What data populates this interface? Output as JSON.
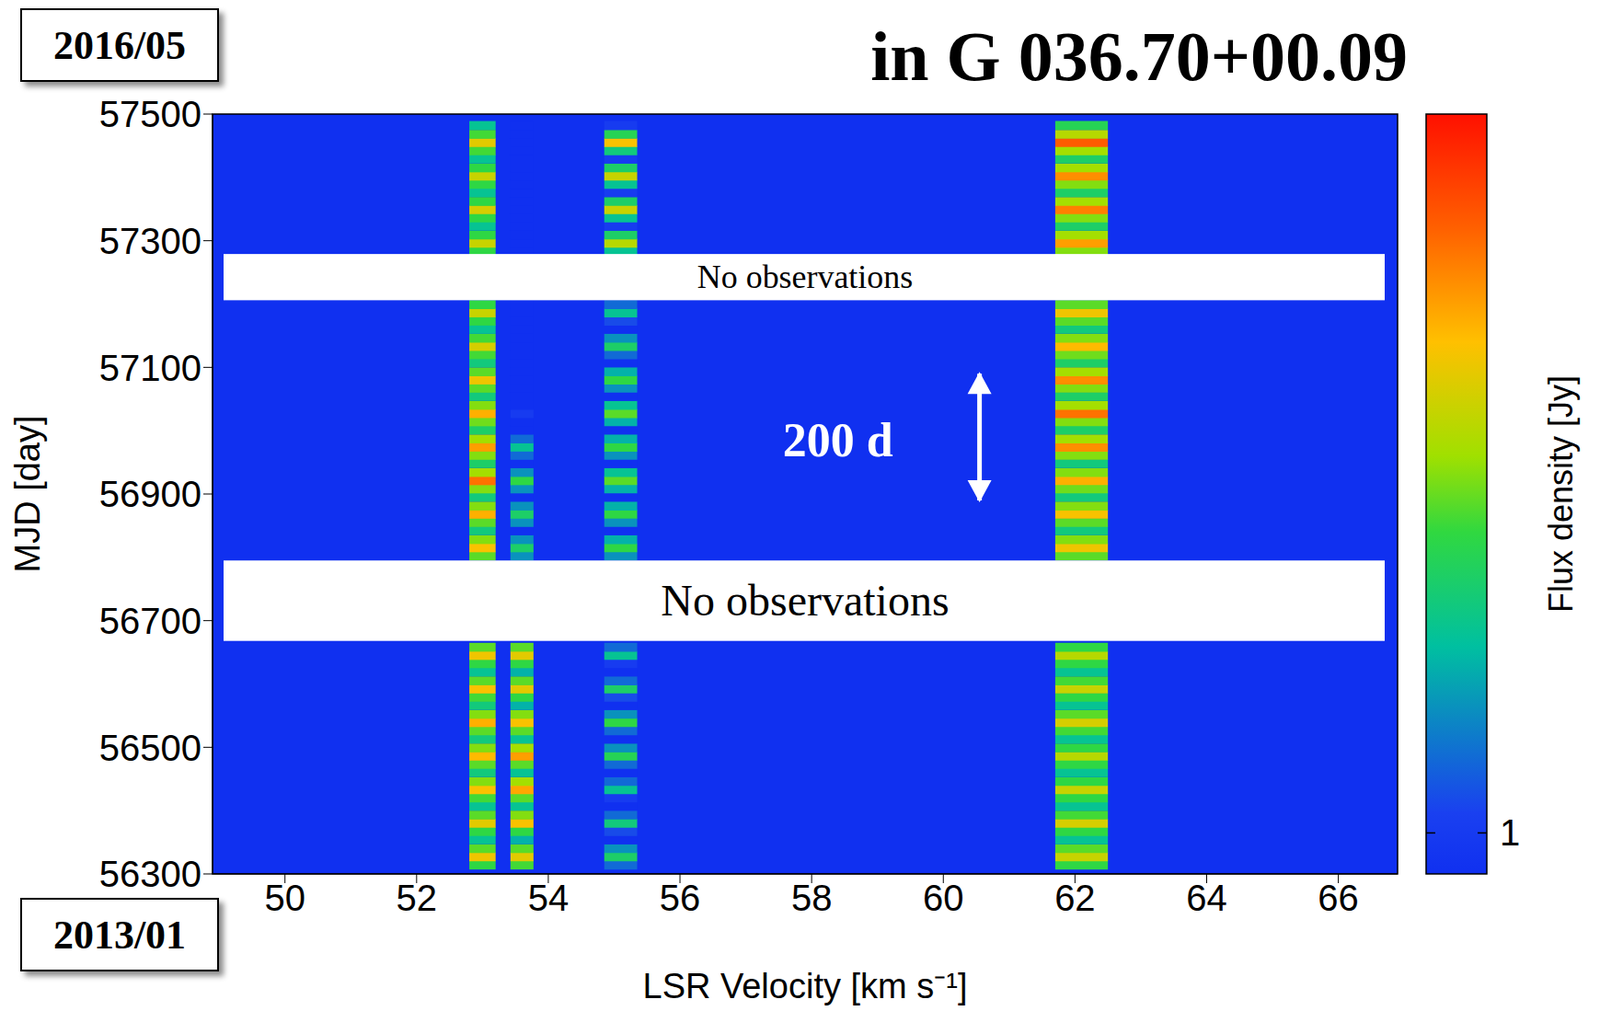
{
  "chart_data": {
    "type": "heatmap",
    "title": "in G 036.70+00.09",
    "xlabel": "LSR Velocity [km s⁻¹]",
    "ylabel": "MJD [day]",
    "xlim": [
      48.9,
      66.9
    ],
    "xticks": [
      50,
      52,
      54,
      56,
      58,
      60,
      62,
      64,
      66
    ],
    "ylim": [
      56300,
      57500
    ],
    "yticks": [
      56300,
      56500,
      56700,
      56900,
      57100,
      57300,
      57500
    ],
    "velocities": [
      53.0,
      53.6,
      55.1,
      62.1
    ],
    "velocity_widths": [
      0.4,
      0.35,
      0.5,
      0.8
    ],
    "mjd": [
      56314,
      56327,
      56340,
      56354,
      56367,
      56380,
      56393,
      56407,
      56420,
      56433,
      56446,
      56460,
      56473,
      56486,
      56499,
      56513,
      56526,
      56539,
      56552,
      56566,
      56579,
      56592,
      56605,
      56619,
      56632,
      56645,
      56658,
      56802,
      56815,
      56828,
      56842,
      56855,
      56868,
      56881,
      56895,
      56908,
      56921,
      56934,
      56948,
      56961,
      56974,
      56987,
      57001,
      57014,
      57027,
      57040,
      57054,
      57067,
      57080,
      57093,
      57107,
      57120,
      57133,
      57146,
      57160,
      57173,
      57186,
      57199,
      57283,
      57296,
      57309,
      57323,
      57336,
      57349,
      57362,
      57376,
      57389,
      57402,
      57415,
      57429,
      57442,
      57455,
      57468,
      57482
    ],
    "flux": [
      [
        5,
        5.5,
        1.5,
        5
      ],
      [
        13,
        12,
        4,
        10
      ],
      [
        6,
        6,
        2,
        6
      ],
      [
        3,
        2.5,
        0.6,
        3
      ],
      [
        5,
        5,
        1.2,
        5
      ],
      [
        12,
        14,
        3.5,
        11
      ],
      [
        6,
        7,
        1.5,
        5.5
      ],
      [
        3,
        3,
        0.5,
        3
      ],
      [
        5.5,
        6,
        1,
        5
      ],
      [
        14,
        17,
        3,
        10
      ],
      [
        7,
        8,
        1.5,
        5
      ],
      [
        3.5,
        3,
        0.5,
        3
      ],
      [
        6,
        6,
        1.5,
        5
      ],
      [
        15,
        18,
        4.5,
        9
      ],
      [
        7,
        8,
        2,
        5
      ],
      [
        3.5,
        3,
        0.6,
        3
      ],
      [
        6,
        6,
        1.5,
        5.5
      ],
      [
        16,
        14,
        5,
        11
      ],
      [
        7,
        7,
        2,
        6
      ],
      [
        3.5,
        2.5,
        0.6,
        3
      ],
      [
        5.5,
        5,
        1.2,
        5
      ],
      [
        14,
        12,
        4,
        10
      ],
      [
        6,
        6,
        1.5,
        5.5
      ],
      [
        3,
        2.5,
        0.5,
        3
      ],
      [
        5,
        5,
        1,
        5
      ],
      [
        13,
        12,
        3,
        9
      ],
      [
        6,
        6,
        1.5,
        5
      ],
      [
        6,
        2,
        2,
        6
      ],
      [
        14,
        4,
        5,
        13
      ],
      [
        7,
        2,
        2.5,
        7
      ],
      [
        3.5,
        0.8,
        0.8,
        3.5
      ],
      [
        6,
        2,
        2,
        6
      ],
      [
        16,
        4,
        5,
        14
      ],
      [
        7,
        2,
        2.5,
        7
      ],
      [
        3.5,
        0.8,
        0.8,
        3.5
      ],
      [
        7,
        2,
        2.5,
        6.5
      ],
      [
        24,
        5,
        6,
        16
      ],
      [
        8,
        2,
        3,
        7
      ],
      [
        4,
        0.7,
        0.8,
        3.5
      ],
      [
        7,
        1.5,
        2,
        7
      ],
      [
        18,
        3,
        5,
        20
      ],
      [
        8,
        1.5,
        2.5,
        8
      ],
      [
        4,
        0.5,
        0.8,
        4
      ],
      [
        6.5,
        0.6,
        2.5,
        7
      ],
      [
        16,
        1,
        6,
        24
      ],
      [
        7,
        0.6,
        3,
        8
      ],
      [
        3.5,
        0.5,
        0.8,
        4
      ],
      [
        6,
        0.5,
        2,
        7
      ],
      [
        13,
        0.6,
        5,
        20
      ],
      [
        6,
        0.5,
        2.5,
        8
      ],
      [
        3.5,
        0.5,
        0.7,
        4
      ],
      [
        5.5,
        0.5,
        1.5,
        6.5
      ],
      [
        11,
        0.5,
        4,
        15
      ],
      [
        5.5,
        0.5,
        2,
        7
      ],
      [
        3,
        0.5,
        0.6,
        3.5
      ],
      [
        5,
        0.5,
        1.2,
        6
      ],
      [
        10,
        0.5,
        3,
        13
      ],
      [
        5,
        0.5,
        1.5,
        6
      ],
      [
        5,
        0.5,
        3,
        7
      ],
      [
        10,
        0.5,
        9,
        18
      ],
      [
        5,
        0.5,
        4,
        8
      ],
      [
        3,
        0.5,
        1,
        4
      ],
      [
        5,
        0.5,
        3,
        7
      ],
      [
        11,
        0.5,
        10,
        22
      ],
      [
        5,
        0.5,
        4,
        8
      ],
      [
        3,
        0.5,
        1,
        4
      ],
      [
        5,
        0.5,
        3,
        7
      ],
      [
        10,
        0.5,
        10,
        20
      ],
      [
        5,
        0.5,
        4,
        8
      ],
      [
        3,
        0.5,
        1,
        4
      ],
      [
        5.5,
        0.5,
        3.5,
        8
      ],
      [
        12,
        0.5,
        14,
        28
      ],
      [
        5.5,
        0.5,
        4.5,
        9
      ],
      [
        3,
        0.5,
        1,
        4.5
      ]
    ],
    "colorbar": {
      "label": "Flux density [Jy]",
      "range": [
        0.8,
        50
      ],
      "ticks": [
        1
      ],
      "log": true
    },
    "no_observations": [
      {
        "label": "No observations",
        "mjd": [
          56668,
          56795
        ]
      },
      {
        "label": "No observations",
        "mjd": [
          57206,
          57279
        ]
      }
    ],
    "annotations": [
      {
        "text": "200 d",
        "x": 58.4,
        "y": 56985,
        "arrow_x": 60.55,
        "arrow_y": [
          56890,
          57090
        ]
      }
    ],
    "date_labels": [
      {
        "text": "2016/05",
        "mjd": 57500
      },
      {
        "text": "2013/01",
        "mjd": 56300
      }
    ]
  }
}
